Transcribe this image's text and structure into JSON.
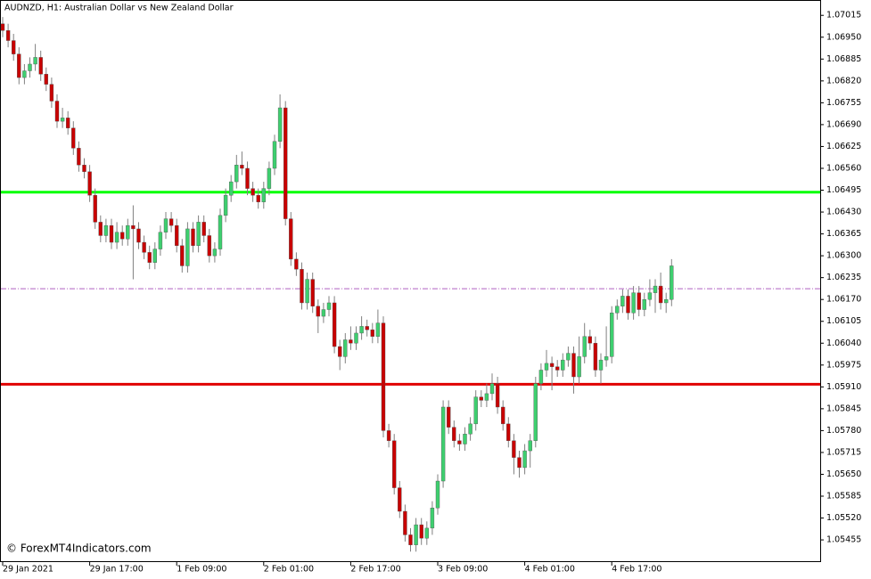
{
  "chart_data": {
    "type": "candlestick",
    "title": "AUDNZD, H1:  Australian Dollar vs New Zealand Dollar",
    "watermark": "© ForexMT4Indicators.com",
    "up_color": "#3ecf6f",
    "down_color": "#c80000",
    "wick_color": "#808080",
    "ylim": [
      1.05389,
      1.07058
    ],
    "yticks": [
      1.07015,
      {
        "value": 1.0695,
        "label": "1.06950"
      },
      1.06885,
      {
        "value": 1.0682,
        "label": "1.06820"
      },
      1.06755,
      {
        "value": 1.0669,
        "label": "1.06690"
      },
      1.06625,
      {
        "value": 1.0656,
        "label": "1.06560"
      },
      1.06495,
      {
        "value": 1.0643,
        "label": "1.06430"
      },
      1.06365,
      {
        "value": 1.063,
        "label": "1.06300"
      },
      1.06235,
      {
        "value": 1.0617,
        "label": "1.06170"
      },
      1.06105,
      {
        "value": 1.0604,
        "label": "1.06040"
      },
      1.05975,
      {
        "value": 1.0591,
        "label": "1.05910"
      },
      1.05845,
      {
        "value": 1.0578,
        "label": "1.05780"
      },
      1.05715,
      {
        "value": 1.0565,
        "label": "1.05650"
      },
      1.05585,
      {
        "value": 1.0552,
        "label": "1.05520"
      },
      1.05455
    ],
    "hlines": [
      {
        "value": 1.06489,
        "color": "#00ff00",
        "dashed": false
      },
      {
        "value": 1.05918,
        "color": "#e00000",
        "dashed": false
      },
      {
        "value": 1.06202,
        "color": "#b060c0",
        "dashed": true
      }
    ],
    "categories": [
      "29 Jan 2021",
      null,
      null,
      null,
      null,
      null,
      null,
      null,
      null,
      null,
      null,
      null,
      null,
      null,
      null,
      null,
      "29 Jan 17:00",
      null,
      null,
      null,
      null,
      null,
      null,
      null,
      null,
      null,
      null,
      null,
      null,
      null,
      null,
      null,
      "1 Feb 09:00",
      null,
      null,
      null,
      null,
      null,
      null,
      null,
      null,
      null,
      null,
      null,
      null,
      null,
      null,
      null,
      "2 Feb 01:00",
      null,
      null,
      null,
      null,
      null,
      null,
      null,
      null,
      null,
      null,
      null,
      null,
      null,
      null,
      null,
      "2 Feb 17:00",
      null,
      null,
      null,
      null,
      null,
      null,
      null,
      null,
      null,
      null,
      null,
      null,
      null,
      null,
      null,
      "3 Feb 09:00",
      null,
      null,
      null,
      null,
      null,
      null,
      null,
      null,
      null,
      null,
      null,
      null,
      null,
      null,
      null,
      "4 Feb 01:00",
      null,
      null,
      null,
      null,
      null,
      null,
      null,
      null,
      null,
      null,
      null,
      null,
      null,
      null,
      null,
      "4 Feb 17:00",
      null,
      null,
      null,
      null,
      null,
      null,
      null,
      null,
      null,
      null,
      null
    ],
    "open": [
      1.0699,
      1.0697,
      1.0694,
      1.069,
      1.0683,
      1.0685,
      1.0687,
      1.0689,
      1.0684,
      1.0681,
      1.0676,
      1.067,
      1.0671,
      1.0668,
      1.0662,
      1.0657,
      1.0655,
      1.0648,
      1.064,
      1.0636,
      1.0639,
      1.0634,
      1.0637,
      1.0635,
      1.0639,
      1.0638,
      1.0634,
      1.0631,
      1.0628,
      1.0632,
      1.0637,
      1.0641,
      1.0639,
      1.0633,
      1.0627,
      1.0638,
      1.0633,
      1.064,
      1.0636,
      1.063,
      1.0632,
      1.0642,
      1.0648,
      1.0652,
      1.0657,
      1.0656,
      1.065,
      1.0648,
      1.0646,
      1.065,
      1.0656,
      1.0664,
      1.0674,
      1.0641,
      1.0629,
      1.0626,
      1.0616,
      1.0623,
      1.0615,
      1.0612,
      1.0614,
      1.0616,
      1.0603,
      1.06,
      1.0605,
      1.0604,
      1.0607,
      1.0609,
      1.0608,
      1.0606,
      1.061,
      1.0578,
      1.0575,
      1.0561,
      1.0554,
      1.0547,
      1.0544,
      1.055,
      1.0546,
      1.0549,
      1.0555,
      1.0563,
      1.0585,
      1.0579,
      1.0575,
      1.0574,
      1.0577,
      1.058,
      1.0588,
      1.0587,
      1.0589,
      1.0592,
      1.0585,
      1.058,
      1.0575,
      1.057,
      1.0567,
      1.0572,
      1.0575,
      1.0592,
      1.0596,
      1.0598,
      1.0597,
      1.0596,
      1.0599,
      1.0601,
      1.0594,
      1.06,
      1.0606,
      1.0604,
      1.0596,
      1.0599,
      1.06,
      1.0613,
      1.0615,
      1.0618,
      1.0613,
      1.0619,
      1.0614,
      1.0617,
      1.0619,
      1.0621,
      1.0616,
      1.0617
    ],
    "high": [
      1.0701,
      1.0699,
      1.0696,
      1.0692,
      1.0687,
      1.0689,
      1.0693,
      1.0691,
      1.0686,
      1.0683,
      1.0678,
      1.0674,
      1.0673,
      1.067,
      1.0664,
      1.0659,
      1.0657,
      1.065,
      1.0642,
      1.0641,
      1.0641,
      1.064,
      1.0639,
      1.0641,
      1.0645,
      1.064,
      1.0636,
      1.0633,
      1.0634,
      1.0639,
      1.0643,
      1.0643,
      1.0641,
      1.0635,
      1.064,
      1.064,
      1.0642,
      1.0642,
      1.0638,
      1.0634,
      1.0644,
      1.065,
      1.0654,
      1.066,
      1.0661,
      1.0658,
      1.0652,
      1.065,
      1.0652,
      1.0658,
      1.0666,
      1.0678,
      1.0676,
      1.0643,
      1.0631,
      1.0628,
      1.0625,
      1.0625,
      1.0617,
      1.0616,
      1.0618,
      1.0618,
      1.0605,
      1.0607,
      1.0609,
      1.0609,
      1.0612,
      1.0611,
      1.061,
      1.0614,
      1.0612,
      1.058,
      1.0577,
      1.0563,
      1.0556,
      1.0549,
      1.0552,
      1.0552,
      1.0551,
      1.0557,
      1.0565,
      1.0587,
      1.0587,
      1.0581,
      1.0577,
      1.0579,
      1.0582,
      1.059,
      1.059,
      1.0592,
      1.0595,
      1.0594,
      1.0587,
      1.0582,
      1.0577,
      1.0572,
      1.0574,
      1.0577,
      1.0594,
      1.0598,
      1.0602,
      1.06,
      1.0599,
      1.0601,
      1.0603,
      1.0603,
      1.0606,
      1.061,
      1.0608,
      1.0606,
      1.0601,
      1.0609,
      1.0615,
      1.0617,
      1.062,
      1.062,
      1.0621,
      1.0621,
      1.0619,
      1.0623,
      1.0623,
      1.0625,
      1.0619,
      1.0629
    ],
    "low": [
      1.0695,
      1.0692,
      1.0688,
      1.0681,
      1.0681,
      1.0683,
      1.0685,
      1.0682,
      1.0679,
      1.0674,
      1.0668,
      1.0668,
      1.0666,
      1.066,
      1.0655,
      1.0653,
      1.0646,
      1.0638,
      1.0634,
      1.0634,
      1.0632,
      1.0632,
      1.0633,
      1.0633,
      1.0623,
      1.0632,
      1.0629,
      1.0626,
      1.0626,
      1.063,
      1.0635,
      1.0637,
      1.0631,
      1.0625,
      1.0625,
      1.0631,
      1.0631,
      1.0634,
      1.0628,
      1.0628,
      1.063,
      1.064,
      1.0646,
      1.065,
      1.0654,
      1.0648,
      1.0646,
      1.0644,
      1.0644,
      1.0648,
      1.0654,
      1.0662,
      1.0639,
      1.0627,
      1.0624,
      1.0614,
      1.0614,
      1.0613,
      1.0607,
      1.061,
      1.0612,
      1.0601,
      1.0596,
      1.0598,
      1.0602,
      1.0602,
      1.0605,
      1.0606,
      1.0604,
      1.0604,
      1.0576,
      1.0573,
      1.0559,
      1.0552,
      1.0545,
      1.0542,
      1.0542,
      1.0544,
      1.0544,
      1.0547,
      1.0553,
      1.0561,
      1.0577,
      1.0573,
      1.0572,
      1.0572,
      1.0575,
      1.0578,
      1.0585,
      1.0585,
      1.0587,
      1.0583,
      1.0578,
      1.0573,
      1.0565,
      1.0564,
      1.0565,
      1.0567,
      1.0573,
      1.059,
      1.0594,
      1.059,
      1.0594,
      1.0594,
      1.0597,
      1.0589,
      1.0592,
      1.0598,
      1.0602,
      1.0594,
      1.0592,
      1.0597,
      1.0598,
      1.0611,
      1.0613,
      1.0611,
      1.0611,
      1.0612,
      1.0612,
      1.0615,
      1.0613,
      1.0614,
      1.0613,
      1.0615
    ],
    "close": [
      1.0697,
      1.0694,
      1.069,
      1.0683,
      1.0685,
      1.0687,
      1.0689,
      1.0684,
      1.0681,
      1.0676,
      1.067,
      1.0671,
      1.0668,
      1.0662,
      1.0657,
      1.0655,
      1.0648,
      1.064,
      1.0636,
      1.0639,
      1.0634,
      1.0637,
      1.0635,
      1.0639,
      1.0638,
      1.0634,
      1.0631,
      1.0628,
      1.0632,
      1.0637,
      1.0641,
      1.0639,
      1.0633,
      1.0627,
      1.0638,
      1.0633,
      1.064,
      1.0636,
      1.063,
      1.0632,
      1.0642,
      1.0648,
      1.0652,
      1.0657,
      1.0656,
      1.065,
      1.0648,
      1.0646,
      1.065,
      1.0656,
      1.0664,
      1.0674,
      1.0641,
      1.0629,
      1.0626,
      1.0616,
      1.0623,
      1.0615,
      1.0612,
      1.0614,
      1.0616,
      1.0603,
      1.06,
      1.0605,
      1.0604,
      1.0607,
      1.0609,
      1.0608,
      1.0606,
      1.061,
      1.0578,
      1.0575,
      1.0561,
      1.0554,
      1.0547,
      1.0544,
      1.055,
      1.0546,
      1.0549,
      1.0555,
      1.0563,
      1.0585,
      1.0579,
      1.0575,
      1.0574,
      1.0577,
      1.058,
      1.0588,
      1.0587,
      1.0589,
      1.0592,
      1.0585,
      1.058,
      1.0575,
      1.057,
      1.0567,
      1.0572,
      1.0575,
      1.0592,
      1.0596,
      1.0598,
      1.0597,
      1.0596,
      1.0599,
      1.0601,
      1.0594,
      1.06,
      1.0606,
      1.0604,
      1.0596,
      1.0599,
      1.06,
      1.0613,
      1.0615,
      1.0618,
      1.0613,
      1.0619,
      1.0614,
      1.0617,
      1.0619,
      1.0621,
      1.0616,
      1.0617,
      1.0627
    ]
  }
}
